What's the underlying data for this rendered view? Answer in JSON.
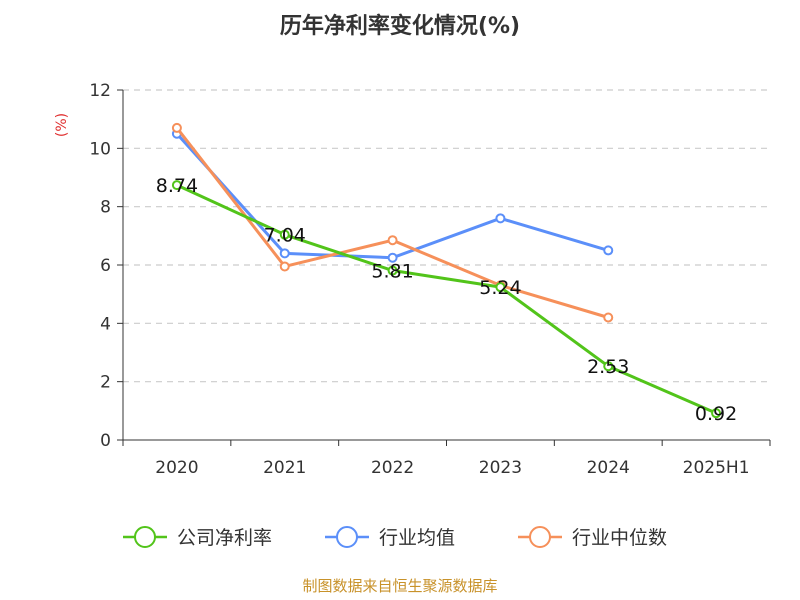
{
  "chart_data": {
    "type": "line",
    "title": "历年净利率变化情况(%)",
    "ylabel": "(%)",
    "xlabel": "",
    "categories": [
      "2020",
      "2021",
      "2022",
      "2023",
      "2024",
      "2025H1"
    ],
    "yticks": [
      "0",
      "2",
      "4",
      "6",
      "8",
      "10",
      "12"
    ],
    "ylim": [
      0,
      12
    ],
    "grid": true,
    "legend_position": "bottom",
    "series": [
      {
        "name": "公司净利率",
        "color": "#52c41a",
        "values": [
          8.74,
          7.04,
          5.81,
          5.24,
          2.53,
          0.92
        ],
        "labels": [
          "8.74",
          "7.04",
          "5.81",
          "5.24",
          "2.53",
          "0.92"
        ]
      },
      {
        "name": "行业均值",
        "color": "#5b8ff9",
        "values": [
          10.5,
          6.4,
          6.25,
          7.6,
          6.5,
          null
        ]
      },
      {
        "name": "行业中位数",
        "color": "#f6905a",
        "values": [
          10.7,
          5.95,
          6.85,
          5.3,
          4.2,
          null
        ]
      }
    ]
  },
  "source": {
    "text": "制图数据来自恒生聚源数据库",
    "color": "#c8922a"
  },
  "unit_color": "#e03030"
}
